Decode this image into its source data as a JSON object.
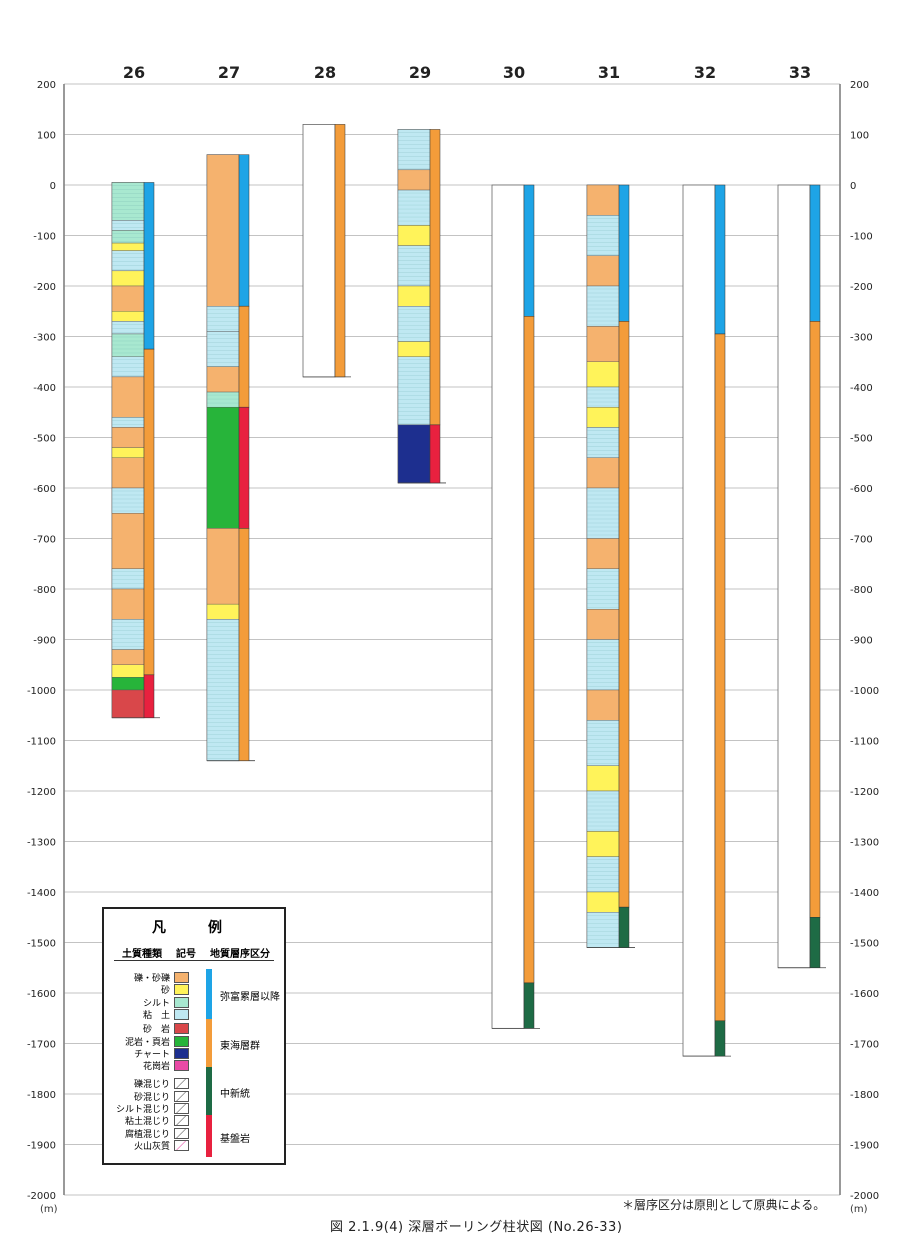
{
  "figure": {
    "caption": "図 2.1.9(4)  深層ボーリング柱状図 (No.26-33)",
    "note": "＊層序区分は原則として原典による。",
    "unit": "(m)"
  },
  "axis": {
    "ticks": [
      "200",
      "100",
      "0",
      "-100",
      "-200",
      "-300",
      "-400",
      "-500",
      "-600",
      "-700",
      "-800",
      "-900",
      "-1000",
      "-1100",
      "-1200",
      "-1300",
      "-1400",
      "-1500",
      "-1600",
      "-1700",
      "-1800",
      "-1900",
      "-2000"
    ],
    "range": [
      -2000,
      200
    ]
  },
  "colors": {
    "gravel": "#f5b26e",
    "sand": "#fff35a",
    "silt": "#a8e8d0",
    "clay": "#bfe8f2",
    "sandstone": "#d9474a",
    "mudstone": "#27b43a",
    "chert": "#1d2f8f",
    "granite": "#e94aa6",
    "strat_upper": "#1ea4e6",
    "strat_tokai": "#f39c3a",
    "strat_neogene": "#1e6b45",
    "strat_basement": "#e8213f",
    "grid": "#555555"
  },
  "boreholes": [
    {
      "id": "26",
      "top": 5,
      "bottom": -1055,
      "strata": [
        {
          "unit": "upper",
          "from": 5,
          "to": -325
        },
        {
          "unit": "tokai",
          "from": -325,
          "to": -970
        },
        {
          "unit": "basement",
          "from": -970,
          "to": -1055
        }
      ],
      "lith": [
        {
          "t": "silt",
          "from": 5,
          "to": -70
        },
        {
          "t": "clay",
          "from": -70,
          "to": -90
        },
        {
          "t": "silt",
          "from": -90,
          "to": -115
        },
        {
          "t": "sand",
          "from": -115,
          "to": -130
        },
        {
          "t": "clay",
          "from": -130,
          "to": -170
        },
        {
          "t": "sand",
          "from": -170,
          "to": -200
        },
        {
          "t": "gravel",
          "from": -200,
          "to": -250
        },
        {
          "t": "sand",
          "from": -250,
          "to": -270
        },
        {
          "t": "clay",
          "from": -270,
          "to": -295
        },
        {
          "t": "silt",
          "from": -295,
          "to": -340
        },
        {
          "t": "clay",
          "from": -340,
          "to": -380
        },
        {
          "t": "gravel",
          "from": -380,
          "to": -460
        },
        {
          "t": "clay",
          "from": -460,
          "to": -480
        },
        {
          "t": "gravel",
          "from": -480,
          "to": -520
        },
        {
          "t": "sand",
          "from": -520,
          "to": -540
        },
        {
          "t": "gravel",
          "from": -540,
          "to": -600
        },
        {
          "t": "clay",
          "from": -600,
          "to": -650
        },
        {
          "t": "gravel",
          "from": -650,
          "to": -760
        },
        {
          "t": "clay",
          "from": -760,
          "to": -800
        },
        {
          "t": "gravel",
          "from": -800,
          "to": -860
        },
        {
          "t": "clay",
          "from": -860,
          "to": -920
        },
        {
          "t": "gravel",
          "from": -920,
          "to": -950
        },
        {
          "t": "sand",
          "from": -950,
          "to": -975
        },
        {
          "t": "mudstone",
          "from": -975,
          "to": -1000
        },
        {
          "t": "sandstone",
          "from": -1000,
          "to": -1055
        }
      ]
    },
    {
      "id": "27",
      "top": 60,
      "bottom": -1140,
      "strata": [
        {
          "unit": "upper",
          "from": 60,
          "to": -240
        },
        {
          "unit": "tokai",
          "from": -240,
          "to": -440
        },
        {
          "unit": "basement",
          "from": -440,
          "to": -680
        },
        {
          "unit": "tokai",
          "from": -680,
          "to": -1140
        }
      ],
      "lith": [
        {
          "t": "gravel",
          "from": 60,
          "to": -240
        },
        {
          "t": "clay",
          "from": -240,
          "to": -290
        },
        {
          "t": "clay",
          "from": -290,
          "to": -360
        },
        {
          "t": "gravel",
          "from": -360,
          "to": -410
        },
        {
          "t": "silt",
          "from": -410,
          "to": -440
        },
        {
          "t": "mudstone",
          "from": -440,
          "to": -680
        },
        {
          "t": "gravel",
          "from": -680,
          "to": -830
        },
        {
          "t": "sand",
          "from": -830,
          "to": -860
        },
        {
          "t": "clay",
          "from": -860,
          "to": -1140
        }
      ]
    },
    {
      "id": "28",
      "top": 120,
      "bottom": -380,
      "strata": [
        {
          "unit": "tokai",
          "from": 120,
          "to": -380
        }
      ],
      "lith": []
    },
    {
      "id": "29",
      "top": 110,
      "bottom": -590,
      "strata": [
        {
          "unit": "tokai",
          "from": 110,
          "to": -475
        },
        {
          "unit": "basement",
          "from": -475,
          "to": -590
        }
      ],
      "lith": [
        {
          "t": "clay",
          "from": 110,
          "to": 30
        },
        {
          "t": "gravel",
          "from": 30,
          "to": -10
        },
        {
          "t": "clay",
          "from": -10,
          "to": -80
        },
        {
          "t": "sand",
          "from": -80,
          "to": -120
        },
        {
          "t": "clay",
          "from": -120,
          "to": -200
        },
        {
          "t": "sand",
          "from": -200,
          "to": -240
        },
        {
          "t": "clay",
          "from": -240,
          "to": -310
        },
        {
          "t": "sand",
          "from": -310,
          "to": -340
        },
        {
          "t": "clay",
          "from": -340,
          "to": -475
        },
        {
          "t": "chert",
          "from": -475,
          "to": -590
        }
      ]
    },
    {
      "id": "30",
      "top": 0,
      "bottom": -1670,
      "strata": [
        {
          "unit": "upper",
          "from": 0,
          "to": -260
        },
        {
          "unit": "tokai",
          "from": -260,
          "to": -1580
        },
        {
          "unit": "neogene",
          "from": -1580,
          "to": -1670
        }
      ],
      "lith": []
    },
    {
      "id": "31",
      "top": 0,
      "bottom": -1510,
      "strata": [
        {
          "unit": "upper",
          "from": 0,
          "to": -270
        },
        {
          "unit": "tokai",
          "from": -270,
          "to": -1430
        },
        {
          "unit": "neogene",
          "from": -1430,
          "to": -1510
        }
      ],
      "lith": [
        {
          "t": "gravel",
          "from": 0,
          "to": -60
        },
        {
          "t": "clay",
          "from": -60,
          "to": -140
        },
        {
          "t": "gravel",
          "from": -140,
          "to": -200
        },
        {
          "t": "clay",
          "from": -200,
          "to": -280
        },
        {
          "t": "gravel",
          "from": -280,
          "to": -350
        },
        {
          "t": "sand",
          "from": -350,
          "to": -400
        },
        {
          "t": "clay",
          "from": -400,
          "to": -440
        },
        {
          "t": "sand",
          "from": -440,
          "to": -480
        },
        {
          "t": "clay",
          "from": -480,
          "to": -540
        },
        {
          "t": "gravel",
          "from": -540,
          "to": -600
        },
        {
          "t": "clay",
          "from": -600,
          "to": -700
        },
        {
          "t": "gravel",
          "from": -700,
          "to": -760
        },
        {
          "t": "clay",
          "from": -760,
          "to": -840
        },
        {
          "t": "gravel",
          "from": -840,
          "to": -900
        },
        {
          "t": "clay",
          "from": -900,
          "to": -1000
        },
        {
          "t": "gravel",
          "from": -1000,
          "to": -1060
        },
        {
          "t": "clay",
          "from": -1060,
          "to": -1150
        },
        {
          "t": "sand",
          "from": -1150,
          "to": -1200
        },
        {
          "t": "clay",
          "from": -1200,
          "to": -1280
        },
        {
          "t": "sand",
          "from": -1280,
          "to": -1330
        },
        {
          "t": "clay",
          "from": -1330,
          "to": -1400
        },
        {
          "t": "sand",
          "from": -1400,
          "to": -1440
        },
        {
          "t": "clay",
          "from": -1440,
          "to": -1510
        }
      ]
    },
    {
      "id": "32",
      "top": 0,
      "bottom": -1725,
      "strata": [
        {
          "unit": "upper",
          "from": 0,
          "to": -295
        },
        {
          "unit": "tokai",
          "from": -295,
          "to": -1655
        },
        {
          "unit": "neogene",
          "from": -1655,
          "to": -1725
        }
      ],
      "lith": []
    },
    {
      "id": "33",
      "top": 0,
      "bottom": -1550,
      "strata": [
        {
          "unit": "upper",
          "from": 0,
          "to": -270
        },
        {
          "unit": "tokai",
          "from": -270,
          "to": -1450
        },
        {
          "unit": "neogene",
          "from": -1450,
          "to": -1550
        }
      ],
      "lith": []
    }
  ],
  "legend": {
    "title": "凡　例",
    "col_soil": "土質種類",
    "col_symbol": "記号",
    "col_strat": "地質層序区分",
    "items": [
      {
        "label": "礫・砂礫",
        "type": "gravel"
      },
      {
        "label": "砂",
        "type": "sand"
      },
      {
        "label": "シルト",
        "type": "silt"
      },
      {
        "label": "粘　土",
        "type": "clay"
      },
      {
        "label": "砂　岩",
        "type": "sandstone"
      },
      {
        "label": "泥岩・頁岩",
        "type": "mudstone"
      },
      {
        "label": "チャート",
        "type": "chert"
      },
      {
        "label": "花崗岩",
        "type": "granite"
      },
      {
        "label": "礫混じり",
        "type": "mix"
      },
      {
        "label": "砂混じり",
        "type": "mix"
      },
      {
        "label": "シルト混じり",
        "type": "mix"
      },
      {
        "label": "粘土混じり",
        "type": "mix"
      },
      {
        "label": "腐植混じり",
        "type": "mix"
      },
      {
        "label": "火山灰質",
        "type": "ash"
      }
    ],
    "strat": [
      {
        "label": "弥富累層以降",
        "unit": "upper"
      },
      {
        "label": "東海層群",
        "unit": "tokai"
      },
      {
        "label": "中新統",
        "unit": "neogene"
      },
      {
        "label": "基盤岩",
        "unit": "basement"
      }
    ]
  }
}
